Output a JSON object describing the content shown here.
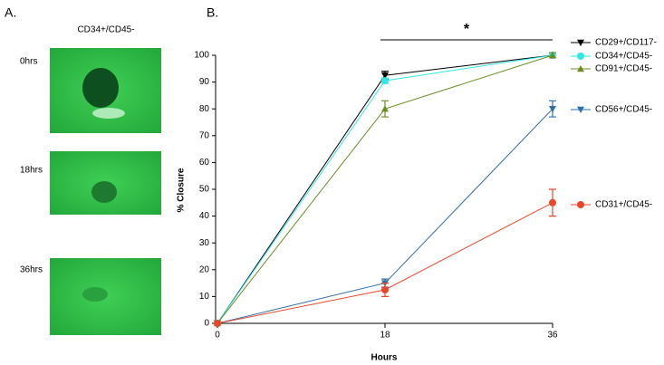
{
  "panel_a": {
    "label": "A.",
    "title": "CD34+/CD45-",
    "rows": [
      "0hrs",
      "18hrs",
      "36hrs"
    ]
  },
  "chart_data": {
    "type": "line",
    "panel_label": "B.",
    "x_label": "Hours",
    "y_label": "% Closure",
    "annotation": "*",
    "x": [
      0,
      18,
      36
    ],
    "xlim": [
      0,
      36
    ],
    "xticks": [
      0,
      18,
      36
    ],
    "ylim": [
      0,
      100
    ],
    "yticks": [
      0,
      10,
      20,
      30,
      40,
      50,
      60,
      70,
      80,
      90,
      100
    ],
    "series": [
      {
        "name": "CD29+/CD117-",
        "color": "#000000",
        "marker": "triangle-down",
        "values": [
          0,
          92.5,
          100
        ],
        "errors": [
          0,
          1.5,
          0
        ]
      },
      {
        "name": "CD34+/CD45-",
        "color": "#33e6e6",
        "marker": "circle",
        "values": [
          0,
          90.5,
          100
        ],
        "errors": [
          0,
          1,
          0
        ]
      },
      {
        "name": "CD91+/CD45-",
        "color": "#6b8e23",
        "marker": "triangle-up",
        "values": [
          0,
          80,
          100
        ],
        "errors": [
          0,
          3,
          1
        ]
      },
      {
        "name": "CD56+/CD45-",
        "color": "#2e6fa8",
        "marker": "triangle-down",
        "values": [
          0,
          15,
          80
        ],
        "errors": [
          0,
          1.5,
          3
        ]
      },
      {
        "name": "CD31+/CD45-",
        "color": "#e8472a",
        "marker": "circle",
        "values": [
          0,
          12.5,
          45
        ],
        "errors": [
          0,
          2.5,
          5
        ]
      }
    ]
  }
}
